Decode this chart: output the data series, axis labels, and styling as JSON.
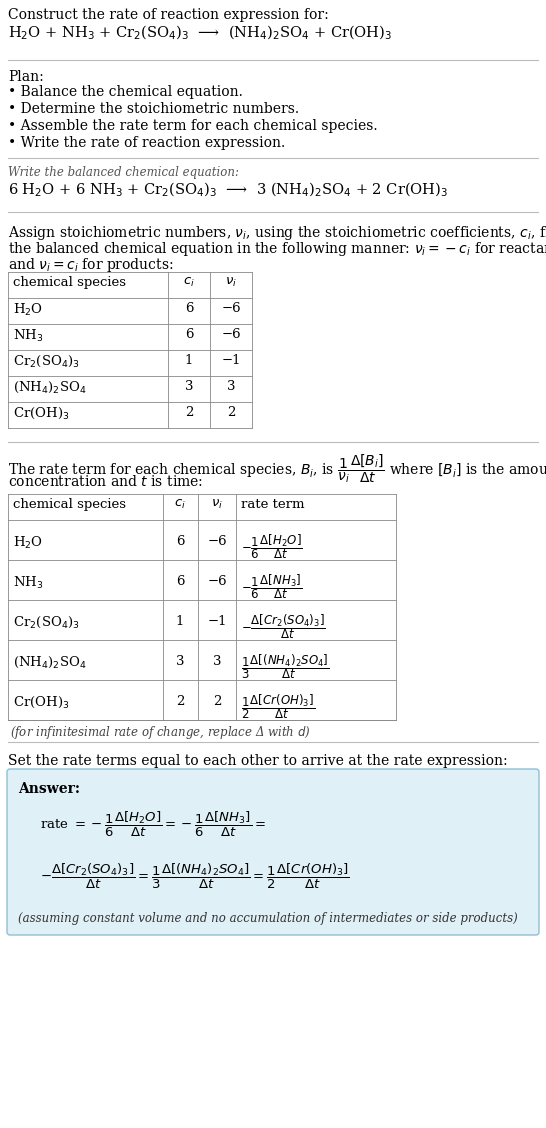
{
  "bg_color": "#ffffff",
  "title_text": "Construct the rate of reaction expression for:",
  "reaction_unbalanced": "H$_2$O + NH$_3$ + Cr$_2$(SO$_4$)$_3$  ⟶  (NH$_4$)$_2$SO$_4$ + Cr(OH)$_3$",
  "plan_header": "Plan:",
  "plan_items": [
    "• Balance the chemical equation.",
    "• Determine the stoichiometric numbers.",
    "• Assemble the rate term for each chemical species.",
    "• Write the rate of reaction expression."
  ],
  "balanced_header": "Write the balanced chemical equation:",
  "reaction_balanced": "6 H$_2$O + 6 NH$_3$ + Cr$_2$(SO$_4$)$_3$  ⟶  3 (NH$_4$)$_2$SO$_4$ + 2 Cr(OH)$_3$",
  "stoich_intro_line1": "Assign stoichiometric numbers, $\\nu_i$, using the stoichiometric coefficients, $c_i$, from",
  "stoich_intro_line2": "the balanced chemical equation in the following manner: $\\nu_i = -c_i$ for reactants",
  "stoich_intro_line3": "and $\\nu_i = c_i$ for products:",
  "table1_headers": [
    "chemical species",
    "$c_i$",
    "$\\nu_i$"
  ],
  "table1_rows": [
    [
      "H$_2$O",
      "6",
      "−6"
    ],
    [
      "NH$_3$",
      "6",
      "−6"
    ],
    [
      "Cr$_2$(SO$_4$)$_3$",
      "1",
      "−1"
    ],
    [
      "(NH$_4$)$_2$SO$_4$",
      "3",
      "3"
    ],
    [
      "Cr(OH)$_3$",
      "2",
      "2"
    ]
  ],
  "rate_intro_line1": "The rate term for each chemical species, $B_i$, is $\\dfrac{1}{\\nu_i}\\dfrac{\\Delta[B_i]}{\\Delta t}$ where $[B_i]$ is the amount",
  "rate_intro_line2": "concentration and $t$ is time:",
  "table2_headers": [
    "chemical species",
    "$c_i$",
    "$\\nu_i$",
    "rate term"
  ],
  "table2_rows_species": [
    "H$_2$O",
    "NH$_3$",
    "Cr$_2$(SO$_4$)$_3$",
    "(NH$_4$)$_2$SO$_4$",
    "Cr(OH)$_3$"
  ],
  "table2_rows_ci": [
    "6",
    "6",
    "1",
    "3",
    "2"
  ],
  "table2_rows_vi": [
    "−6",
    "−6",
    "−1",
    "3",
    "2"
  ],
  "table2_rows_rate": [
    "$-\\dfrac{1}{6}\\dfrac{\\Delta[H_2O]}{\\Delta t}$",
    "$-\\dfrac{1}{6}\\dfrac{\\Delta[NH_3]}{\\Delta t}$",
    "$-\\dfrac{\\Delta[Cr_2(SO_4)_3]}{\\Delta t}$",
    "$\\dfrac{1}{3}\\dfrac{\\Delta[(NH_4)_2SO_4]}{\\Delta t}$",
    "$\\dfrac{1}{2}\\dfrac{\\Delta[Cr(OH)_3]}{\\Delta t}$"
  ],
  "infinitesimal_note": "(for infinitesimal rate of change, replace Δ with $d$)",
  "set_equal_text": "Set the rate terms equal to each other to arrive at the rate expression:",
  "answer_label": "Answer:",
  "answer_box_color": "#dff0f7",
  "answer_box_border": "#90bfd4",
  "answer_rate_line1": "rate $= -\\dfrac{1}{6}\\dfrac{\\Delta[H_2O]}{\\Delta t} = -\\dfrac{1}{6}\\dfrac{\\Delta[NH_3]}{\\Delta t} =$",
  "answer_rate_line2": "$-\\dfrac{\\Delta[Cr_2(SO_4)_3]}{\\Delta t} = \\dfrac{1}{3}\\dfrac{\\Delta[(NH_4)_2SO_4]}{\\Delta t} = \\dfrac{1}{2}\\dfrac{\\Delta[Cr(OH)_3]}{\\Delta t}$",
  "footnote": "(assuming constant volume and no accumulation of intermediates or side products)"
}
